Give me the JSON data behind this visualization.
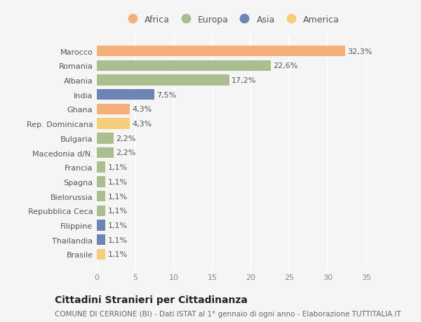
{
  "countries": [
    "Marocco",
    "Romania",
    "Albania",
    "India",
    "Ghana",
    "Rep. Dominicana",
    "Bulgaria",
    "Macedonia d/N.",
    "Francia",
    "Spagna",
    "Bielorussia",
    "Repubblica Ceca",
    "Filippine",
    "Thailandia",
    "Brasile"
  ],
  "values": [
    32.3,
    22.6,
    17.2,
    7.5,
    4.3,
    4.3,
    2.2,
    2.2,
    1.1,
    1.1,
    1.1,
    1.1,
    1.1,
    1.1,
    1.1
  ],
  "labels": [
    "32,3%",
    "22,6%",
    "17,2%",
    "7,5%",
    "4,3%",
    "4,3%",
    "2,2%",
    "2,2%",
    "1,1%",
    "1,1%",
    "1,1%",
    "1,1%",
    "1,1%",
    "1,1%",
    "1,1%"
  ],
  "continents": [
    "Africa",
    "Europa",
    "Europa",
    "Asia",
    "Africa",
    "America",
    "Europa",
    "Europa",
    "Europa",
    "Europa",
    "Europa",
    "Europa",
    "Asia",
    "Asia",
    "America"
  ],
  "colors": {
    "Africa": "#F5B07A",
    "Europa": "#ABBE8F",
    "Asia": "#6B85B5",
    "America": "#F5CE7A"
  },
  "title": "Cittadini Stranieri per Cittadinanza",
  "subtitle": "COMUNE DI CERRIONE (BI) - Dati ISTAT al 1° gennaio di ogni anno - Elaborazione TUTTITALIA.IT",
  "xlim": [
    0,
    35
  ],
  "xticks": [
    0,
    5,
    10,
    15,
    20,
    25,
    30,
    35
  ],
  "background_color": "#f5f5f5",
  "grid_color": "#ffffff",
  "bar_height": 0.75,
  "title_fontsize": 10,
  "subtitle_fontsize": 7.5,
  "label_fontsize": 8,
  "tick_fontsize": 8,
  "legend_fontsize": 9
}
